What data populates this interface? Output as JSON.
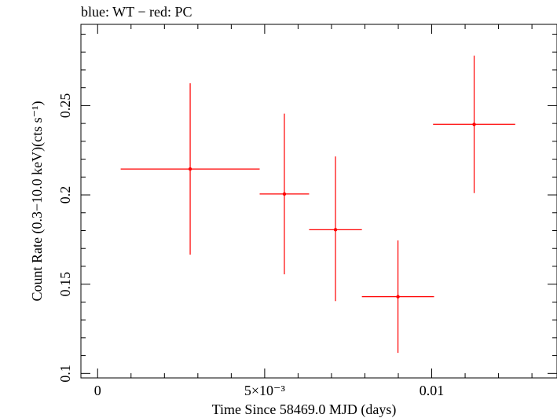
{
  "chart_data": {
    "type": "scatter",
    "title": "blue: WT − red: PC",
    "xlabel": "Time Since 58469.0 MJD (days)",
    "ylabel": "Count Rate (0.3−10.0 keV)(cts s⁻¹)",
    "xlim": [
      -0.0005,
      0.01375
    ],
    "ylim": [
      0.0975,
      0.2955
    ],
    "x_ticks": [
      {
        "value": 0,
        "label": "0"
      },
      {
        "value": 0.005,
        "label": "5×10⁻³"
      },
      {
        "value": 0.01,
        "label": "0.01"
      }
    ],
    "y_ticks": [
      {
        "value": 0.1,
        "label": "0.1"
      },
      {
        "value": 0.15,
        "label": "0.15"
      },
      {
        "value": 0.2,
        "label": "0.2"
      },
      {
        "value": 0.25,
        "label": "0.25"
      }
    ],
    "grid": false,
    "series": [
      {
        "color": "#ff0000",
        "points": [
          {
            "x": 0.00277,
            "y": 0.2145,
            "xerr": 0.00208,
            "ylow": 0.1665,
            "yhigh": 0.2625
          },
          {
            "x": 0.00559,
            "y": 0.2005,
            "xerr": 0.00074,
            "ylow": 0.1555,
            "yhigh": 0.2455
          },
          {
            "x": 0.00712,
            "y": 0.1805,
            "xerr": 0.00079,
            "ylow": 0.1405,
            "yhigh": 0.2215
          },
          {
            "x": 0.00899,
            "y": 0.143,
            "xerr": 0.00108,
            "ylow": 0.1115,
            "yhigh": 0.1745
          },
          {
            "x": 0.01127,
            "y": 0.2395,
            "xerr": 0.00123,
            "ylow": 0.201,
            "yhigh": 0.278
          }
        ]
      }
    ]
  }
}
